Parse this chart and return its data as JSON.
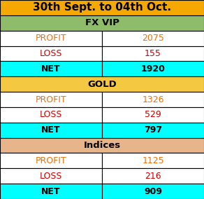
{
  "title": "30th Sept. to 04th Oct.",
  "title_bg": "#F5A800",
  "title_color": "#000000",
  "sections": [
    {
      "label": "FX VIP",
      "label_bg": "#8FBC6A",
      "label_color": "#000000",
      "rows": [
        {
          "label": "PROFIT",
          "value": "2075",
          "bg": "#FFFFFF",
          "text_color": "#E8720C"
        },
        {
          "label": "LOSS",
          "value": "155",
          "bg": "#FFFFFF",
          "text_color": "#CC0000"
        },
        {
          "label": "NET",
          "value": "1920",
          "bg": "#00FFFF",
          "text_color": "#000000"
        }
      ]
    },
    {
      "label": "GOLD",
      "label_bg": "#F5C842",
      "label_color": "#000000",
      "rows": [
        {
          "label": "PROFIT",
          "value": "1326",
          "bg": "#FFFFFF",
          "text_color": "#E8720C"
        },
        {
          "label": "LOSS",
          "value": "529",
          "bg": "#FFFFFF",
          "text_color": "#CC0000"
        },
        {
          "label": "NET",
          "value": "797",
          "bg": "#00FFFF",
          "text_color": "#000000"
        }
      ]
    },
    {
      "label": "Indices",
      "label_bg": "#E8B48A",
      "label_color": "#000000",
      "rows": [
        {
          "label": "PROFIT",
          "value": "1125",
          "bg": "#FFFFFF",
          "text_color": "#E8720C"
        },
        {
          "label": "LOSS",
          "value": "216",
          "bg": "#FFFFFF",
          "text_color": "#CC0000"
        },
        {
          "label": "NET",
          "value": "909",
          "bg": "#00FFFF",
          "text_color": "#000000"
        }
      ]
    }
  ],
  "border_color": "#000000",
  "col_split": 0.5,
  "title_fontsize": 11,
  "header_fontsize": 9.5,
  "data_fontsize": 9,
  "figsize": [
    2.92,
    2.84
  ],
  "dpi": 100
}
